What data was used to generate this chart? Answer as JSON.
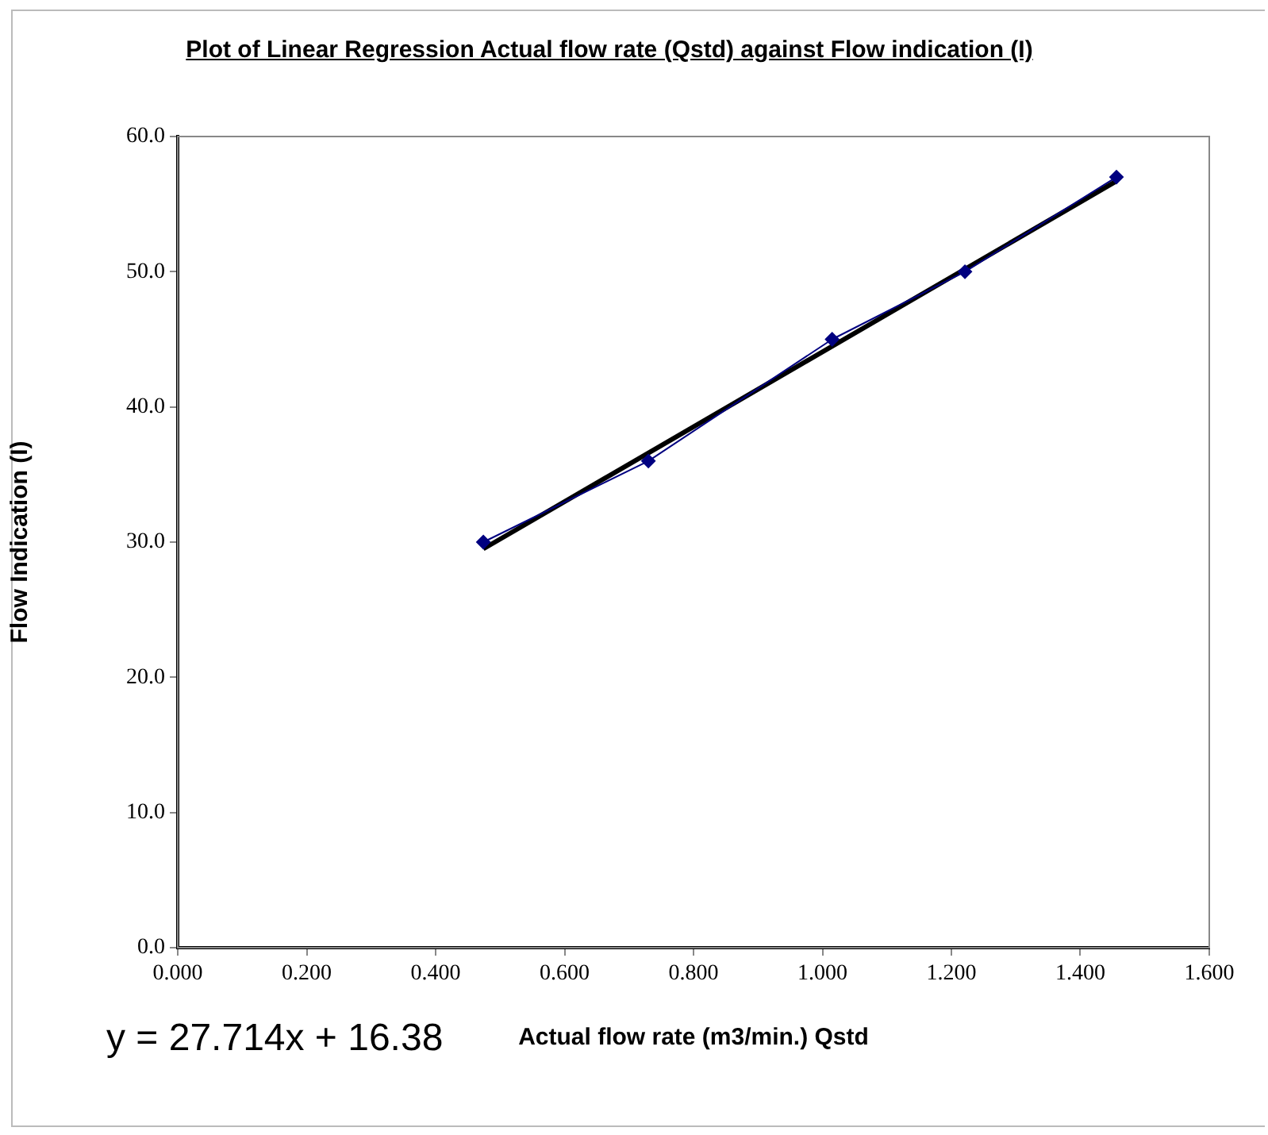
{
  "chart_data": {
    "type": "scatter",
    "title": "Plot of Linear Regression Actual flow rate (Qstd) against Flow indication (I)",
    "xlabel": "Actual flow rate (m3/min.) Qstd",
    "ylabel": "Flow Indication (I)",
    "x": [
      0.474,
      0.73,
      1.015,
      1.221,
      1.456
    ],
    "series": [
      {
        "type": "line",
        "color": "#000080",
        "marker": "diamond",
        "values": [
          30,
          36,
          45,
          50,
          57
        ]
      },
      {
        "type": "line",
        "color": "#000000",
        "marker": "none",
        "x": [
          0.474,
          1.456
        ],
        "values": [
          29.5,
          56.7
        ]
      }
    ],
    "annotations": [
      "y = 27.714x + 16.38"
    ],
    "xlim": [
      0,
      1.6
    ],
    "xticks": [
      {
        "value": 0,
        "label": "0.000"
      },
      {
        "value": 0.2,
        "label": "0.200"
      },
      {
        "value": 0.4,
        "label": "0.400"
      },
      {
        "value": 0.6,
        "label": "0.600"
      },
      {
        "value": 0.8,
        "label": "0.800"
      },
      {
        "value": 1.0,
        "label": "1.000"
      },
      {
        "value": 1.2,
        "label": "1.200"
      },
      {
        "value": 1.4,
        "label": "1.400"
      },
      {
        "value": 1.6,
        "label": "1.600"
      }
    ],
    "ylim": [
      0,
      60
    ],
    "yticks": [
      {
        "value": 0,
        "label": "0.0"
      },
      {
        "value": 10,
        "label": "10.0"
      },
      {
        "value": 20,
        "label": "20.0"
      },
      {
        "value": 30,
        "label": "30.0"
      },
      {
        "value": 40,
        "label": "40.0"
      },
      {
        "value": 50,
        "label": "50.0"
      },
      {
        "value": 60,
        "label": "60.0"
      }
    ],
    "grid": false,
    "legend": false
  }
}
